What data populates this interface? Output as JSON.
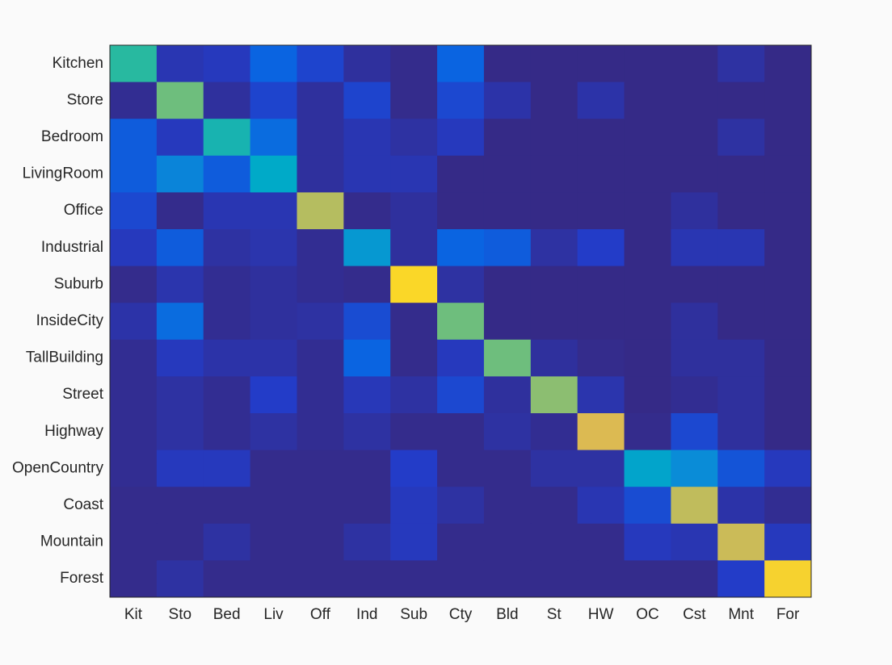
{
  "chart_data": {
    "type": "heatmap",
    "x_categories": [
      "Kit",
      "Sto",
      "Bed",
      "Liv",
      "Off",
      "Ind",
      "Sub",
      "Cty",
      "Bld",
      "St",
      "HW",
      "OC",
      "Cst",
      "Mnt",
      "For"
    ],
    "y_categories": [
      "Kitchen",
      "Store",
      "Bedroom",
      "LivingRoom",
      "Office",
      "Industrial",
      "Suburb",
      "InsideCity",
      "TallBuilding",
      "Street",
      "Highway",
      "OpenCountry",
      "Coast",
      "Mountain",
      "Forest"
    ],
    "values": [
      [
        0.52,
        0.08,
        0.1,
        0.22,
        0.14,
        0.04,
        0.01,
        0.22,
        0,
        0,
        0,
        0,
        0,
        0.05,
        0
      ],
      [
        0.02,
        0.6,
        0.04,
        0.14,
        0.04,
        0.14,
        0.01,
        0.15,
        0.06,
        0,
        0.06,
        0,
        0,
        0,
        0
      ],
      [
        0.2,
        0.1,
        0.48,
        0.24,
        0.04,
        0.08,
        0.05,
        0.1,
        0,
        0,
        0,
        0,
        0,
        0.05,
        0
      ],
      [
        0.2,
        0.3,
        0.2,
        0.42,
        0.04,
        0.08,
        0.08,
        0,
        0,
        0,
        0,
        0,
        0,
        0,
        0
      ],
      [
        0.15,
        0.01,
        0.08,
        0.08,
        0.7,
        0.01,
        0.04,
        0,
        0,
        0,
        0,
        0,
        0.04,
        0,
        0
      ],
      [
        0.1,
        0.2,
        0.05,
        0.07,
        0.02,
        0.36,
        0.04,
        0.22,
        0.2,
        0.05,
        0.12,
        0,
        0.08,
        0.08,
        0
      ],
      [
        0.01,
        0.07,
        0.02,
        0.04,
        0.02,
        0.01,
        0.9,
        0.05,
        0,
        0,
        0,
        0,
        0,
        0,
        0
      ],
      [
        0.06,
        0.24,
        0.02,
        0.04,
        0.05,
        0.16,
        0.01,
        0.6,
        0,
        0,
        0,
        0,
        0.04,
        0,
        0
      ],
      [
        0.02,
        0.1,
        0.06,
        0.06,
        0.02,
        0.22,
        0.01,
        0.1,
        0.6,
        0.04,
        0.01,
        0,
        0.04,
        0.04,
        0
      ],
      [
        0.02,
        0.05,
        0.02,
        0.12,
        0.02,
        0.09,
        0.05,
        0.15,
        0.04,
        0.64,
        0.07,
        0,
        0.02,
        0.04,
        0
      ],
      [
        0.02,
        0.05,
        0.02,
        0.05,
        0.02,
        0.05,
        0.01,
        0.01,
        0.05,
        0.02,
        0.77,
        0.01,
        0.15,
        0.04,
        0
      ],
      [
        0.02,
        0.1,
        0.1,
        0.01,
        0.01,
        0.01,
        0.12,
        0.01,
        0.01,
        0.05,
        0.05,
        0.4,
        0.32,
        0.18,
        0.1
      ],
      [
        0.01,
        0.01,
        0.01,
        0.01,
        0.01,
        0.01,
        0.1,
        0.05,
        0.01,
        0.01,
        0.08,
        0.16,
        0.72,
        0.06,
        0.02
      ],
      [
        0.01,
        0.01,
        0.05,
        0.01,
        0.01,
        0.05,
        0.1,
        0.01,
        0.01,
        0.01,
        0.01,
        0.1,
        0.08,
        0.74,
        0.1
      ],
      [
        0.01,
        0.05,
        0.01,
        0.01,
        0.01,
        0.01,
        0.01,
        0.01,
        0.01,
        0.01,
        0.01,
        0.01,
        0.01,
        0.12,
        0.88
      ]
    ],
    "colormap": "parula",
    "clim": [
      0,
      1
    ]
  }
}
